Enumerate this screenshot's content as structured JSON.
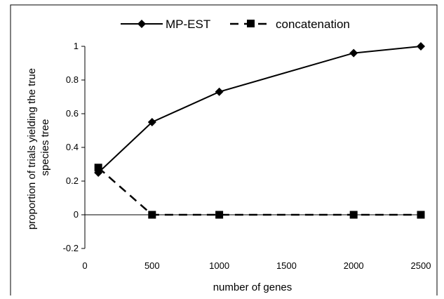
{
  "chart_data": {
    "type": "line",
    "title": "",
    "xlabel": "number of genes",
    "ylabel_lines": [
      "proportion of trials yielding the true",
      "species tree"
    ],
    "xlim": [
      0,
      2500
    ],
    "ylim": [
      -0.2,
      1
    ],
    "x_ticks": [
      0,
      500,
      1000,
      1500,
      2000,
      2500
    ],
    "y_ticks": [
      -0.2,
      0,
      0.2,
      0.4,
      0.6,
      0.8,
      1
    ],
    "x_tick_labels": [
      "0",
      "500",
      "1000",
      "1500",
      "2000",
      "2500"
    ],
    "y_tick_labels": [
      "-0.2",
      "0",
      "0.2",
      "0.4",
      "0.6",
      "0.8",
      "1"
    ],
    "grid": false,
    "legend_position": "top",
    "series": [
      {
        "name": "MP-EST",
        "marker": "diamond",
        "line_style": "solid",
        "color": "#000000",
        "x": [
          100,
          500,
          1000,
          2000,
          2500
        ],
        "y": [
          0.25,
          0.55,
          0.73,
          0.96,
          1.0
        ]
      },
      {
        "name": "concatenation",
        "marker": "square",
        "line_style": "dashed",
        "color": "#000000",
        "x": [
          100,
          500,
          1000,
          2000,
          2500
        ],
        "y": [
          0.28,
          0.0,
          0.0,
          0.0,
          0.0
        ]
      }
    ]
  }
}
